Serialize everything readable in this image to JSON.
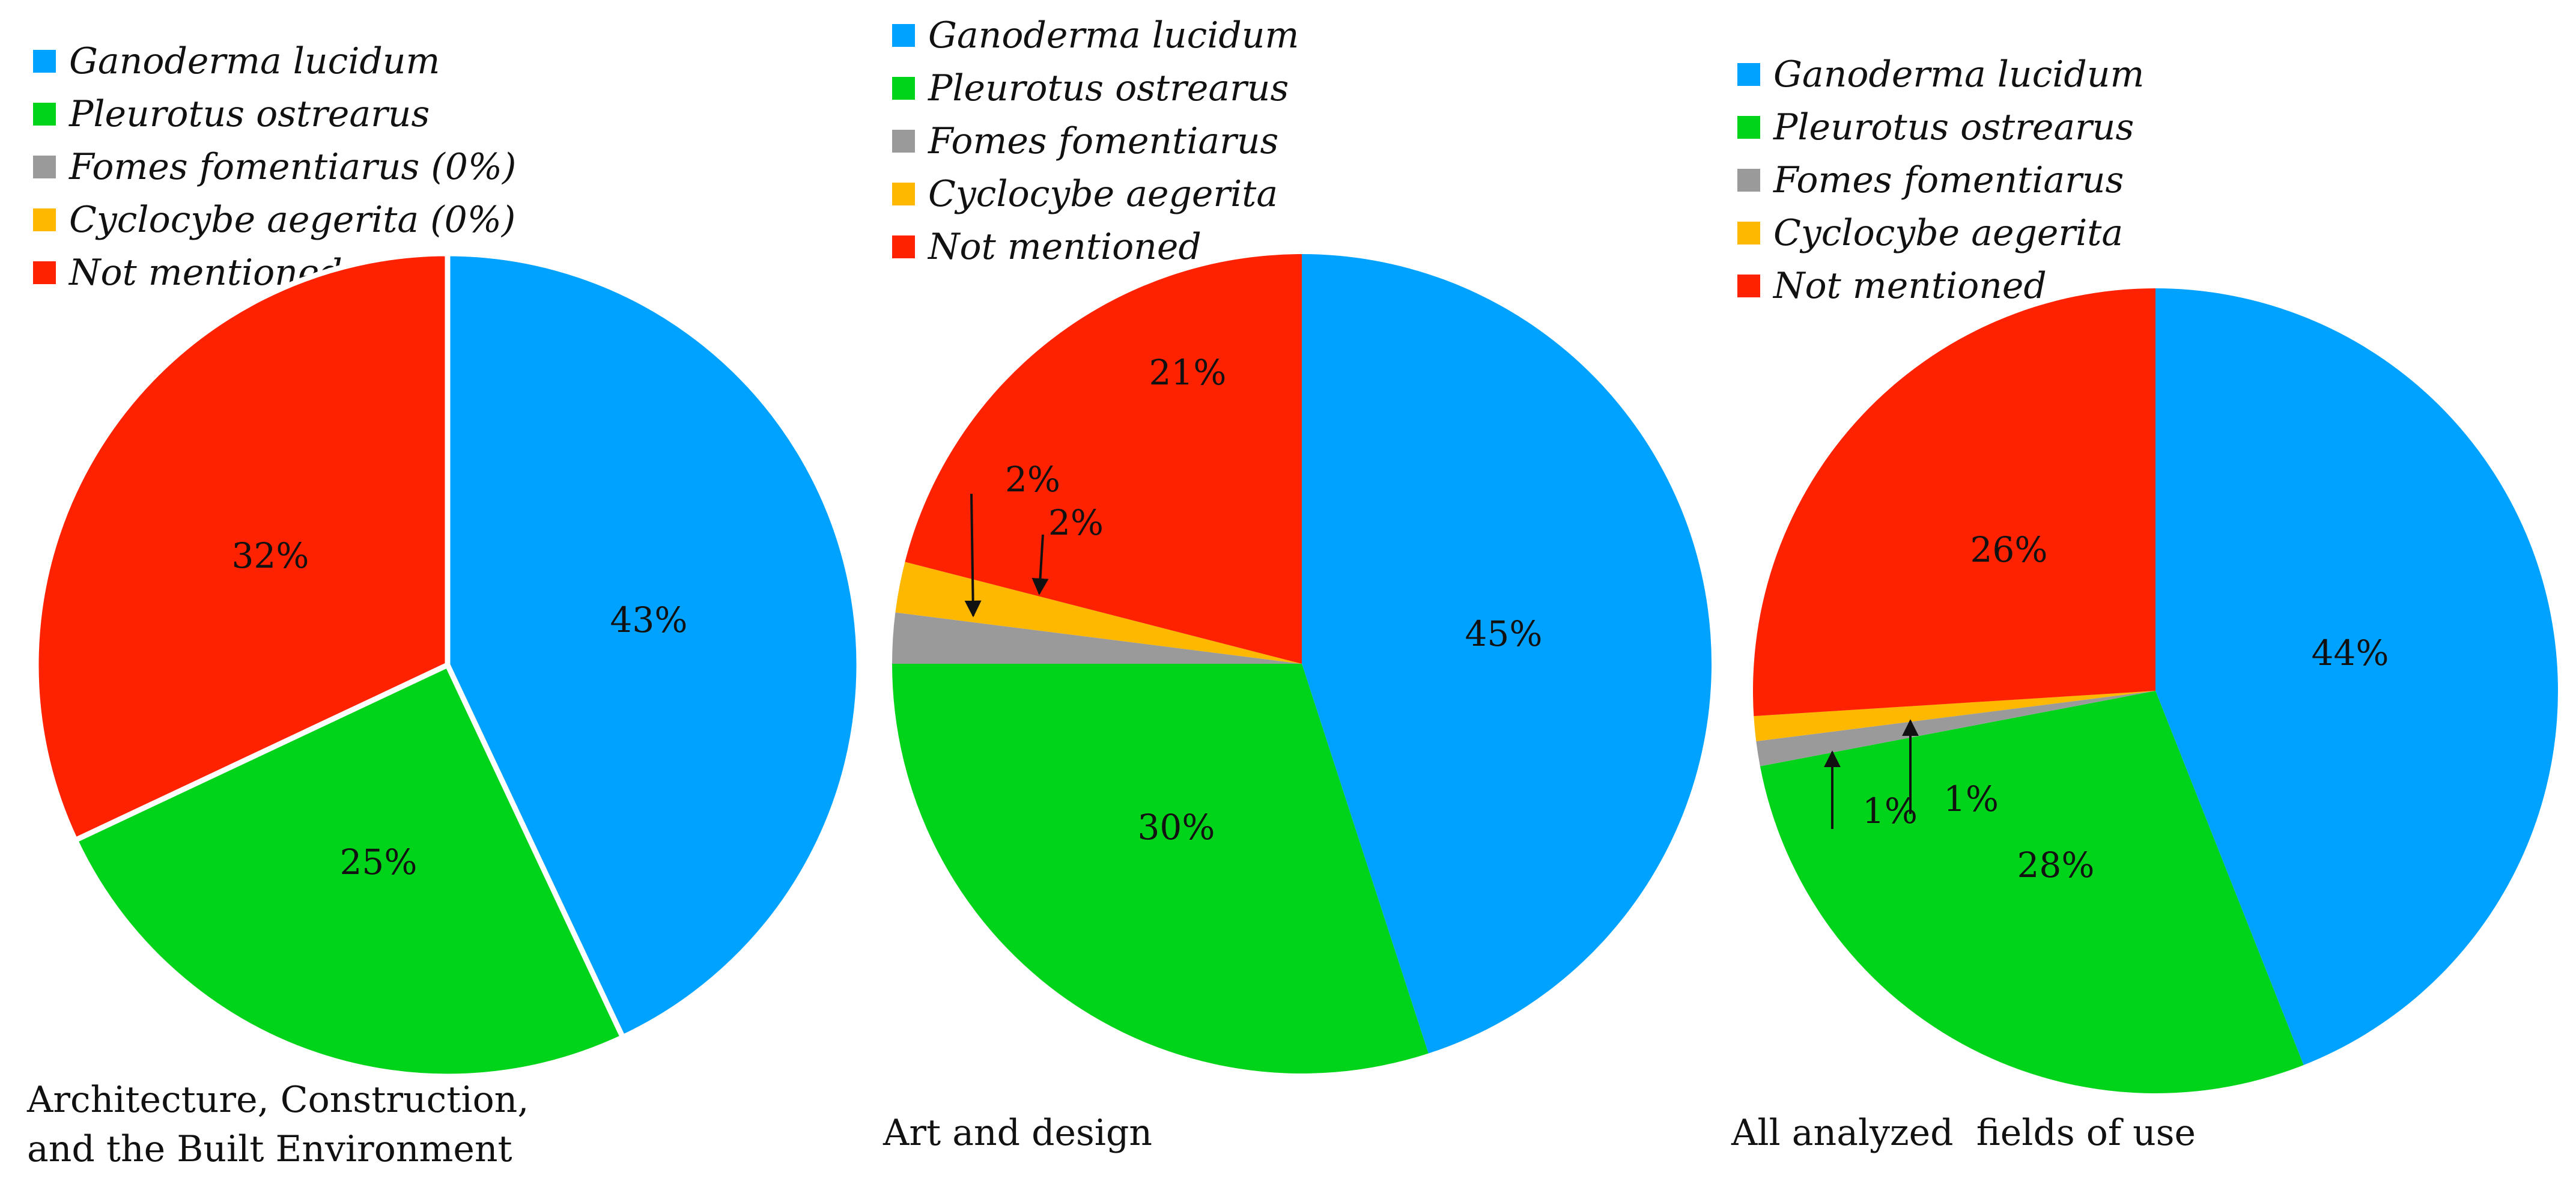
{
  "colors": {
    "Ganoderma lucidum": "#00a2ff",
    "Pleurotus ostrearus": "#00d41a",
    "Fomes fomentiarus": "#9a9a9a",
    "Cyclocybe aegerita": "#ffb800",
    "Not mentioned": "#ff2200"
  },
  "chart_data": [
    {
      "type": "pie",
      "title": "Architecture, Construction, and the Built Environment",
      "title_lines": [
        "Architecture, Construction,",
        "and the Built Environment"
      ],
      "legend": [
        "Ganoderma lucidum",
        "Pleurotus ostrearus",
        "Fomes fomentiarus (0%)",
        "Cyclocybe aegerita (0%)",
        "Not mentioned"
      ],
      "slices": [
        {
          "label": "Ganoderma lucidum",
          "value": 43,
          "display": "43%"
        },
        {
          "label": "Pleurotus ostrearus",
          "value": 25,
          "display": "25%"
        },
        {
          "label": "Fomes fomentiarus",
          "value": 0,
          "display": ""
        },
        {
          "label": "Cyclocybe aegerita",
          "value": 0,
          "display": ""
        },
        {
          "label": "Not mentioned",
          "value": 32,
          "display": "32%"
        }
      ]
    },
    {
      "type": "pie",
      "title": "Art and design",
      "title_lines": [
        "Art and design"
      ],
      "legend": [
        "Ganoderma lucidum",
        "Pleurotus ostrearus",
        "Fomes fomentiarus",
        "Cyclocybe aegerita",
        "Not mentioned"
      ],
      "slices": [
        {
          "label": "Ganoderma lucidum",
          "value": 45,
          "display": "45%"
        },
        {
          "label": "Pleurotus ostrearus",
          "value": 30,
          "display": "30%"
        },
        {
          "label": "Fomes fomentiarus",
          "value": 2,
          "display": "2%"
        },
        {
          "label": "Cyclocybe aegerita",
          "value": 2,
          "display": "2%"
        },
        {
          "label": "Not mentioned",
          "value": 21,
          "display": "21%"
        }
      ]
    },
    {
      "type": "pie",
      "title": "All analyzed fields of use",
      "title_lines": [
        "All analyzed  fields of use"
      ],
      "legend": [
        "Ganoderma lucidum",
        "Pleurotus ostrearus",
        "Fomes fomentiarus",
        "Cyclocybe aegerita",
        "Not mentioned"
      ],
      "slices": [
        {
          "label": "Ganoderma lucidum",
          "value": 44,
          "display": "44%"
        },
        {
          "label": "Pleurotus ostrearus",
          "value": 28,
          "display": "28%"
        },
        {
          "label": "Fomes fomentiarus",
          "value": 1,
          "display": "1%"
        },
        {
          "label": "Cyclocybe aegerita",
          "value": 1,
          "display": "1%"
        },
        {
          "label": "Not mentioned",
          "value": 26,
          "display": "26%"
        }
      ]
    }
  ]
}
